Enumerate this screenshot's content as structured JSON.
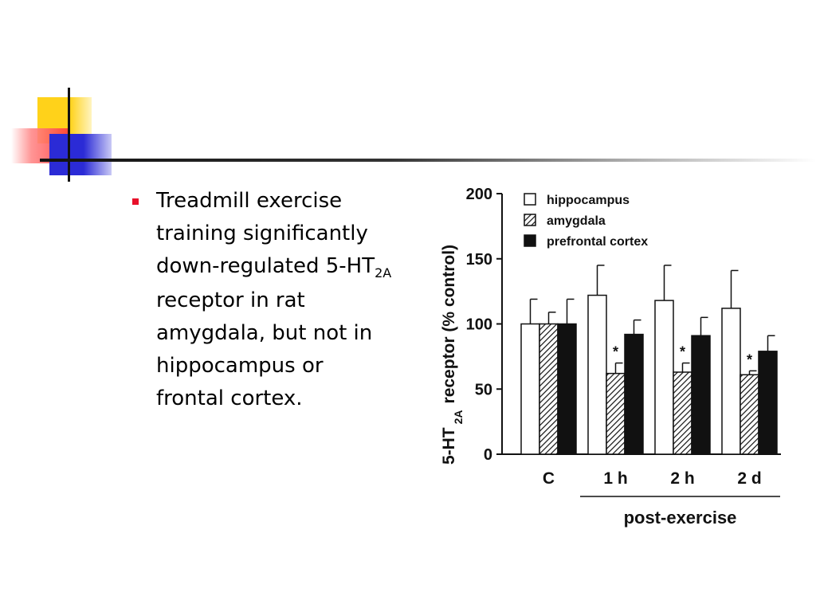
{
  "colors": {
    "bullet": "#e8102a",
    "accent_yellow": "#ffd21a",
    "accent_red": "#ff3a3a",
    "accent_blue": "#2b2bd6"
  },
  "slide": {
    "bullet_main": "Treadmill exercise training significantly down-regulated 5-HT",
    "bullet_sub": "2A",
    "bullet_tail": " receptor in rat amygdala, but not in hippocampus or frontal cortex."
  },
  "chart_data": {
    "type": "bar",
    "categories": [
      "C",
      "1 h",
      "2 h",
      "2 d"
    ],
    "category_group_label": "post-exercise",
    "ylabel_main": "5-HT",
    "ylabel_sub": "2A",
    "ylabel_tail": "receptor (% control)",
    "ylim": [
      0,
      200
    ],
    "yticks": [
      0,
      50,
      100,
      150,
      200
    ],
    "legend_position": "top-left",
    "grid": false,
    "series": [
      {
        "name": "hippocampus",
        "pattern": "open",
        "values": [
          100,
          122,
          118,
          112
        ],
        "errors": [
          19,
          23,
          27,
          29
        ]
      },
      {
        "name": "amygdala",
        "pattern": "hatched",
        "values": [
          100,
          62,
          63,
          61
        ],
        "errors": [
          9,
          8,
          7,
          3
        ]
      },
      {
        "name": "prefrontal cortex",
        "pattern": "solid",
        "values": [
          100,
          92,
          91,
          79
        ],
        "errors": [
          19,
          11,
          14,
          12
        ]
      }
    ],
    "significance": [
      "",
      "*",
      "*",
      "*"
    ]
  }
}
